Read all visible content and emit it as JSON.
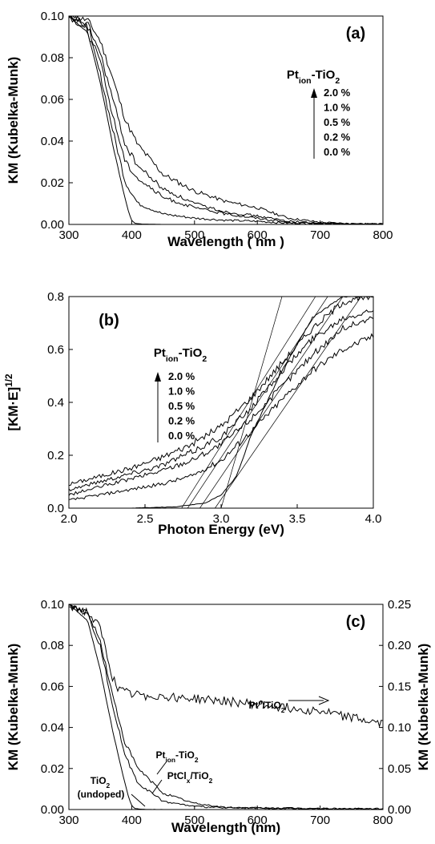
{
  "chart_data": [
    {
      "type": "line",
      "panel_label": "(a)",
      "xlabel": "Wavelength ( nm )",
      "ylabel": "KM (Kubelka-Munk)",
      "xlim": [
        300,
        800
      ],
      "ylim": [
        0,
        0.1
      ],
      "x_ticks": [
        "300",
        "400",
        "500",
        "600",
        "700",
        "800"
      ],
      "y_ticks": [
        "0.00",
        "0.02",
        "0.04",
        "0.06",
        "0.08",
        "0.10"
      ],
      "legend": {
        "title_main": "Pt",
        "title_sub": "ion",
        "title_rest": "-TiO",
        "title_sub2": "2",
        "entries": [
          "2.0 %",
          "1.0 %",
          "0.5 %",
          "0.2 %",
          "0.0 %"
        ],
        "placement": "top-right"
      },
      "series": [
        {
          "name": "2.0 %",
          "x": [
            300,
            330,
            350,
            370,
            390,
            410,
            450,
            500,
            550,
            600,
            650,
            700,
            750,
            800
          ],
          "y": [
            0.1,
            0.098,
            0.088,
            0.07,
            0.05,
            0.038,
            0.024,
            0.016,
            0.011,
            0.008,
            0.003,
            0.001,
            0.0003,
            0.0001
          ]
        },
        {
          "name": "1.0 %",
          "x": [
            300,
            330,
            350,
            370,
            390,
            410,
            450,
            500,
            550,
            600,
            650,
            700,
            750,
            800
          ],
          "y": [
            0.1,
            0.096,
            0.082,
            0.06,
            0.038,
            0.028,
            0.017,
            0.01,
            0.006,
            0.004,
            0.0015,
            0.0006,
            0.0002,
            0.0001
          ]
        },
        {
          "name": "0.5 %",
          "x": [
            300,
            330,
            350,
            370,
            390,
            410,
            450,
            500,
            550,
            600,
            650,
            700,
            750,
            800
          ],
          "y": [
            0.1,
            0.095,
            0.078,
            0.052,
            0.03,
            0.022,
            0.013,
            0.008,
            0.005,
            0.003,
            0.001,
            0.0004,
            0.0002,
            0.0001
          ]
        },
        {
          "name": "0.2 %",
          "x": [
            300,
            330,
            350,
            370,
            390,
            410,
            450,
            500,
            550,
            600,
            650,
            700,
            750,
            800
          ],
          "y": [
            0.1,
            0.093,
            0.072,
            0.045,
            0.02,
            0.01,
            0.005,
            0.003,
            0.002,
            0.0015,
            0.0006,
            0.0003,
            0.0001,
            0.0001
          ]
        },
        {
          "name": "0.0 %",
          "x": [
            300,
            330,
            350,
            370,
            385,
            395,
            400,
            405,
            420,
            450,
            500,
            800
          ],
          "y": [
            0.1,
            0.092,
            0.068,
            0.038,
            0.018,
            0.006,
            0.002,
            0.0005,
            0.0001,
            0.0,
            0.0,
            0.0
          ]
        }
      ]
    },
    {
      "type": "line",
      "panel_label": "(b)",
      "xlabel": "Photon Energy (eV)",
      "ylabel_main": "[KM·E]",
      "ylabel_sup": "1/2",
      "xlim": [
        2.0,
        4.0
      ],
      "ylim": [
        0,
        0.8
      ],
      "x_ticks": [
        "2.0",
        "2.5",
        "3.0",
        "3.5",
        "4.0"
      ],
      "y_ticks": [
        "0.0",
        "0.2",
        "0.4",
        "0.6",
        "0.8"
      ],
      "legend": {
        "title_main": "Pt",
        "title_sub": "ion",
        "title_rest": "-TiO",
        "title_sub2": "2",
        "entries": [
          "2.0 %",
          "1.0 %",
          "0.5 %",
          "0.2 %",
          "0.0 %"
        ],
        "placement": "top-left"
      },
      "series": [
        {
          "name": "2.0 %",
          "x": [
            2.0,
            2.2,
            2.4,
            2.6,
            2.8,
            3.0,
            3.2,
            3.4,
            3.6,
            3.8,
            4.0
          ],
          "y": [
            0.09,
            0.12,
            0.15,
            0.19,
            0.24,
            0.31,
            0.42,
            0.55,
            0.68,
            0.78,
            0.8
          ]
        },
        {
          "name": "1.0 %",
          "x": [
            2.0,
            2.2,
            2.4,
            2.6,
            2.8,
            3.0,
            3.2,
            3.4,
            3.6,
            3.8,
            4.0
          ],
          "y": [
            0.07,
            0.1,
            0.13,
            0.16,
            0.21,
            0.27,
            0.38,
            0.52,
            0.64,
            0.72,
            0.75
          ]
        },
        {
          "name": "0.5 %",
          "x": [
            2.0,
            2.2,
            2.4,
            2.6,
            2.8,
            3.0,
            3.2,
            3.4,
            3.6,
            3.8,
            4.0
          ],
          "y": [
            0.05,
            0.08,
            0.11,
            0.14,
            0.18,
            0.24,
            0.34,
            0.46,
            0.58,
            0.68,
            0.72
          ]
        },
        {
          "name": "0.2 %",
          "x": [
            2.0,
            2.2,
            2.4,
            2.6,
            2.8,
            3.0,
            3.2,
            3.4,
            3.6,
            3.8,
            4.0
          ],
          "y": [
            0.03,
            0.05,
            0.07,
            0.09,
            0.12,
            0.18,
            0.29,
            0.41,
            0.52,
            0.6,
            0.65
          ]
        },
        {
          "name": "0.0 %",
          "x": [
            2.0,
            2.4,
            2.7,
            2.9,
            3.0,
            3.1,
            3.2,
            3.4,
            3.6,
            3.8,
            4.0
          ],
          "y": [
            0.0,
            0.0,
            0.005,
            0.02,
            0.05,
            0.12,
            0.28,
            0.52,
            0.72,
            0.8,
            0.8
          ]
        }
      ],
      "fit_lines": [
        {
          "x": [
            2.74,
            3.62
          ],
          "y": [
            0.0,
            0.8
          ]
        },
        {
          "x": [
            2.78,
            3.7
          ],
          "y": [
            0.0,
            0.8
          ]
        },
        {
          "x": [
            2.86,
            3.8
          ],
          "y": [
            0.0,
            0.8
          ]
        },
        {
          "x": [
            2.96,
            3.92
          ],
          "y": [
            0.0,
            0.8
          ]
        },
        {
          "x": [
            3.0,
            3.4
          ],
          "y": [
            0.0,
            0.8
          ]
        }
      ]
    },
    {
      "type": "line",
      "panel_label": "(c)",
      "xlabel": "Wavelength (nm)",
      "ylabel": "KM (Kubelka-Munk)",
      "ylabel_right": "KM (Kubelka-Munk)",
      "xlim": [
        300,
        800
      ],
      "ylim": [
        0,
        0.1
      ],
      "ylim_right": [
        0,
        0.25
      ],
      "x_ticks": [
        "300",
        "400",
        "500",
        "600",
        "700",
        "800"
      ],
      "y_ticks": [
        "0.00",
        "0.02",
        "0.04",
        "0.06",
        "0.08",
        "0.10"
      ],
      "y_ticks_right": [
        "0.00",
        "0.05",
        "0.10",
        "0.15",
        "0.20",
        "0.25"
      ],
      "annotations": {
        "pt0_main": "Pt",
        "pt0_sup": "o",
        "pt0_rest": "/TiO",
        "pt0_sub": "2",
        "ption_main": "Pt",
        "ption_sub": "ion",
        "ption_rest": "-TiO",
        "ption_sub2": "2",
        "ptcl_main": "PtCl",
        "ptcl_sub": "x",
        "ptcl_rest": "/TiO",
        "ptcl_sub2": "2",
        "tio2_main": "TiO",
        "tio2_sub": "2",
        "undoped": "(undoped)"
      },
      "series": [
        {
          "name": "",
          "axis": "right",
          "x": [
            300,
            330,
            350,
            360,
            370,
            380,
            400,
            450,
            500,
            550,
            600,
            650,
            700,
            750,
            800
          ],
          "y": [
            0.25,
            0.24,
            0.22,
            0.19,
            0.16,
            0.145,
            0.14,
            0.138,
            0.135,
            0.132,
            0.128,
            0.124,
            0.12,
            0.112,
            0.104
          ]
        },
        {
          "name": "",
          "axis": "left",
          "x": [
            300,
            330,
            350,
            370,
            390,
            410,
            450,
            500,
            550,
            600,
            700,
            800
          ],
          "y": [
            0.1,
            0.096,
            0.082,
            0.055,
            0.032,
            0.02,
            0.008,
            0.003,
            0.001,
            0.0008,
            0.0005,
            0.0003
          ]
        },
        {
          "name": "",
          "axis": "left",
          "x": [
            300,
            330,
            350,
            370,
            390,
            410,
            450,
            500,
            550,
            600,
            700,
            800
          ],
          "y": [
            0.1,
            0.095,
            0.08,
            0.05,
            0.026,
            0.013,
            0.004,
            0.0015,
            0.0008,
            0.0006,
            0.0004,
            0.0003
          ]
        },
        {
          "name": "",
          "axis": "left",
          "x": [
            300,
            330,
            350,
            370,
            385,
            395,
            400,
            405,
            420,
            450,
            500,
            800
          ],
          "y": [
            0.1,
            0.092,
            0.068,
            0.038,
            0.018,
            0.006,
            0.002,
            0.0005,
            0.0001,
            0.0,
            0.0,
            0.0
          ]
        }
      ]
    }
  ]
}
